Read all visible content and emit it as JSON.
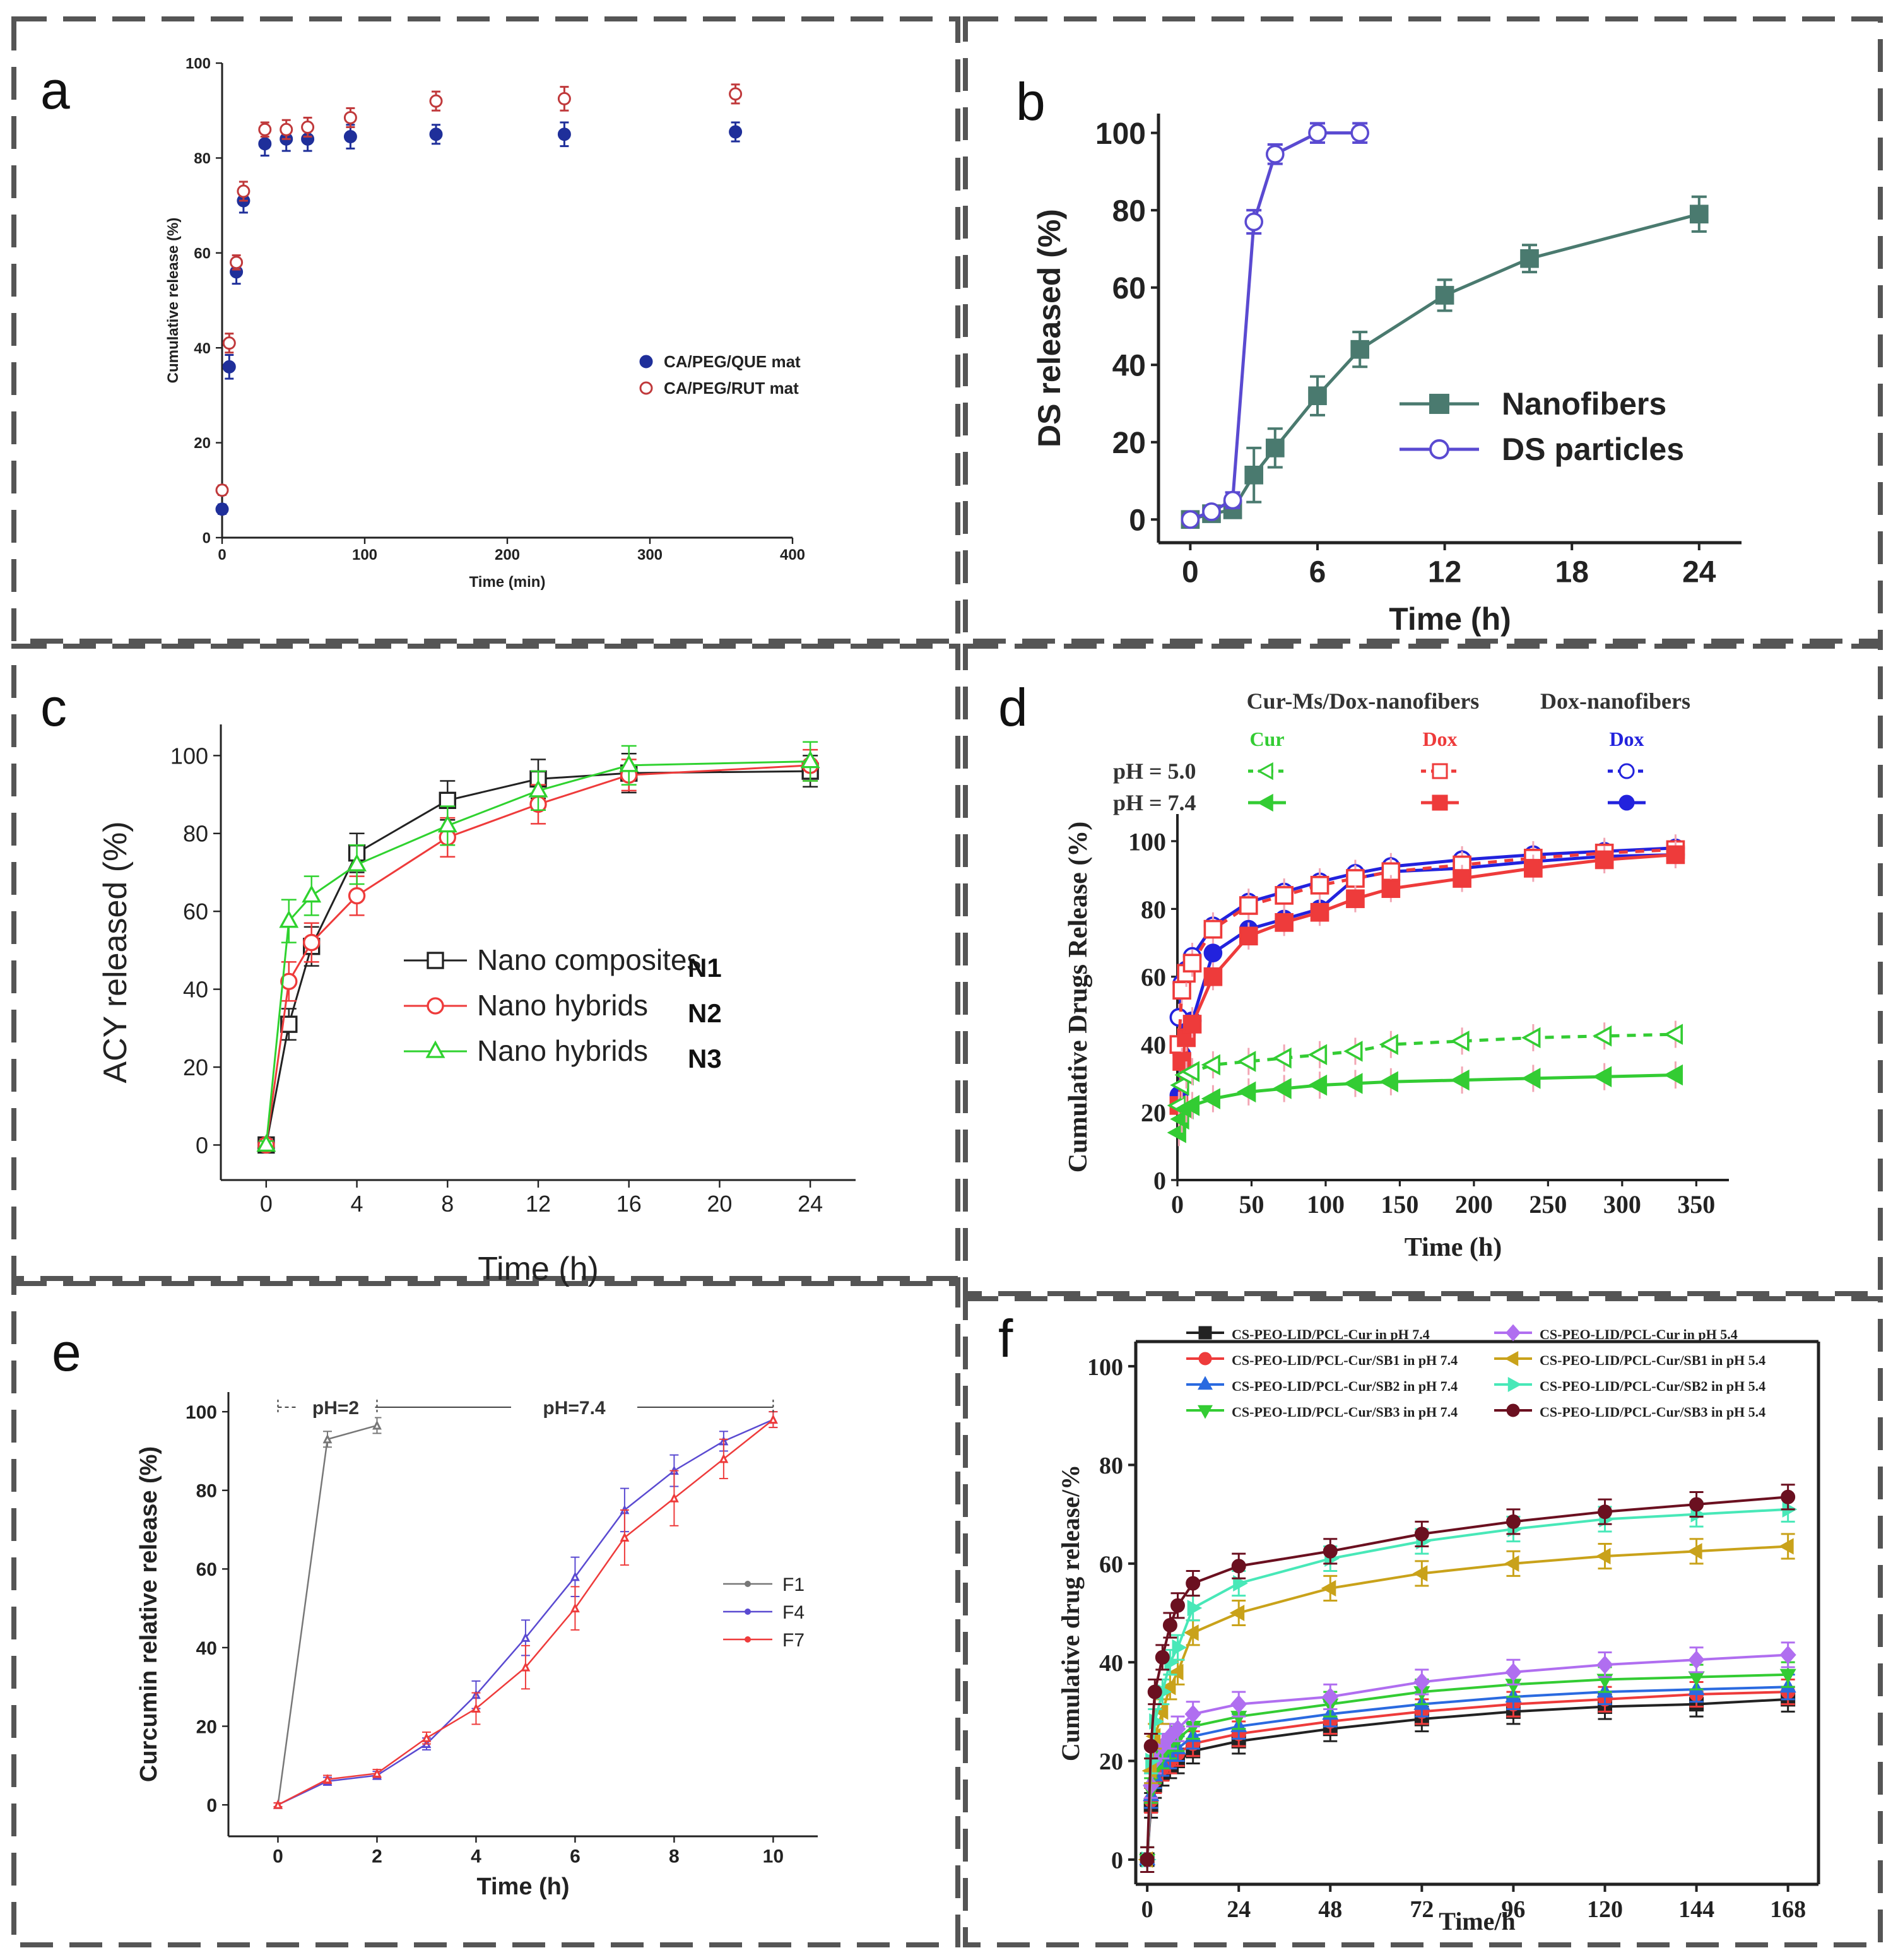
{
  "colors": {
    "panel_border": "#555555",
    "navy": "#1f2f9a",
    "redA": "#c0393b",
    "teal": "#4a7a6f",
    "purple": "#5a4ad1",
    "black": "#222222",
    "red": "#ee3b3b",
    "green": "#2fd22f",
    "brightGreen": "#33cc33",
    "blue": "#2222dd",
    "darkRed": "#6b1020",
    "gold": "#c9a21a",
    "aqua": "#48e8b8",
    "violet": "#b06ef0",
    "grayLine": "#777777"
  },
  "chart_data": [
    {
      "panel": "a",
      "type": "scatter",
      "xlabel": "Time (min)",
      "ylabel": "Cumulative release (%)",
      "xlim": [
        0,
        400
      ],
      "ylim": [
        0,
        100
      ],
      "xticks": [
        0,
        100,
        200,
        300,
        400
      ],
      "yticks": [
        0,
        20,
        40,
        60,
        80,
        100
      ],
      "series": [
        {
          "name": "CA/PEG/QUE mat",
          "marker": "filled-circle",
          "color": "#1f2f9a",
          "x": [
            0,
            5,
            10,
            15,
            30,
            45,
            60,
            90,
            150,
            240,
            360
          ],
          "y": [
            6,
            36,
            56,
            71,
            83,
            84,
            84,
            84.5,
            85,
            85,
            85.5
          ],
          "err": [
            1,
            2.5,
            2.5,
            2.5,
            2.5,
            2.5,
            2.5,
            2.5,
            2,
            2.5,
            2
          ]
        },
        {
          "name": "CA/PEG/RUT mat",
          "marker": "open-circle",
          "color": "#c0393b",
          "x": [
            0,
            5,
            10,
            15,
            30,
            45,
            60,
            90,
            150,
            240,
            360
          ],
          "y": [
            10,
            41,
            58,
            73,
            86,
            86,
            86.5,
            88.5,
            92,
            92.5,
            93.5
          ],
          "err": [
            1,
            2,
            1.5,
            2,
            1.5,
            2,
            2,
            2,
            2,
            2.5,
            2
          ]
        }
      ],
      "legend_position": "center-right"
    },
    {
      "panel": "b",
      "type": "line",
      "xlabel": "Time (h)",
      "ylabel": "DS released (%)",
      "xlim": [
        -1.5,
        26
      ],
      "ylim": [
        -6,
        105
      ],
      "xticks": [
        0,
        6,
        12,
        18,
        24
      ],
      "yticks": [
        0,
        20,
        40,
        60,
        80,
        100
      ],
      "series": [
        {
          "name": "Nanofibers",
          "marker": "filled-square",
          "color": "#4a7a6f",
          "x": [
            0,
            1,
            2,
            3,
            4,
            6,
            8,
            12,
            16,
            24
          ],
          "y": [
            0,
            1.5,
            2.5,
            11.5,
            18.5,
            32,
            44,
            58,
            67.5,
            79
          ],
          "err": [
            1,
            1,
            2,
            7,
            5,
            5,
            4.5,
            4,
            3.5,
            4.5
          ]
        },
        {
          "name": "DS particles",
          "marker": "open-circle",
          "color": "#5a4ad1",
          "x": [
            0,
            1,
            2,
            3,
            4,
            6,
            8
          ],
          "y": [
            0,
            2,
            5,
            77,
            94.5,
            100,
            100
          ],
          "err": [
            1,
            1,
            2,
            3,
            2.5,
            2.5,
            2.5
          ]
        }
      ],
      "legend_position": "center-right"
    },
    {
      "panel": "c",
      "type": "line",
      "xlabel": "Time (h)",
      "ylabel": "ACY released (%)",
      "xlim": [
        -2,
        26
      ],
      "ylim": [
        -9,
        108
      ],
      "xticks": [
        0,
        4,
        8,
        12,
        16,
        20,
        24
      ],
      "yticks": [
        0,
        20,
        40,
        60,
        80,
        100
      ],
      "series": [
        {
          "name": "Nano composites",
          "tag": "N1",
          "marker": "open-square",
          "color": "#222222",
          "x": [
            0,
            1,
            2,
            4,
            8,
            12,
            16,
            24
          ],
          "y": [
            0,
            31,
            51,
            75,
            88.5,
            94,
            95.5,
            96
          ],
          "err": [
            1,
            4,
            5,
            5,
            5,
            5,
            5,
            4
          ]
        },
        {
          "name": "Nano hybrids",
          "tag": "N2",
          "marker": "open-circle",
          "color": "#ee3b3b",
          "x": [
            0,
            1,
            2,
            4,
            8,
            12,
            16,
            24
          ],
          "y": [
            0,
            42,
            52,
            64,
            79,
            87.5,
            95,
            97.5
          ],
          "err": [
            1,
            5,
            5,
            5,
            5,
            5,
            4,
            4
          ]
        },
        {
          "name": "Nano hybrids",
          "tag": "N3",
          "marker": "open-triangle",
          "color": "#2fd22f",
          "x": [
            0,
            1,
            2,
            4,
            8,
            12,
            16,
            24
          ],
          "y": [
            0,
            57.5,
            64,
            72,
            82,
            91,
            97.5,
            98.5
          ],
          "err": [
            1,
            5.5,
            5,
            5,
            5,
            5,
            5,
            5
          ]
        }
      ],
      "legend_position": "center"
    },
    {
      "panel": "d",
      "type": "line",
      "xlabel": "Time (h)",
      "ylabel": "Cumulative Drugs Release (%)",
      "xlim": [
        0,
        372
      ],
      "ylim": [
        0,
        108
      ],
      "xticks": [
        0,
        50,
        100,
        150,
        200,
        250,
        300,
        350
      ],
      "yticks": [
        0,
        20,
        40,
        60,
        80,
        100
      ],
      "legend_headers": {
        "group1": "Cur-Ms/Dox-nanofibers",
        "group2": "Dox-nanofibers",
        "col1": "Cur",
        "col2": "Dox",
        "col3": "Dox",
        "row1": "pH = 5.0",
        "row2": "pH = 7.4"
      },
      "series": [
        {
          "name": "Dox-nanofibers Dox pH 5.0",
          "marker": "open-circle",
          "dashed": false,
          "color": "#2222dd",
          "x": [
            1,
            3,
            6,
            10,
            24,
            48,
            72,
            96,
            120,
            144,
            192,
            240,
            288,
            336
          ],
          "y": [
            48,
            58,
            62,
            66,
            75,
            82,
            85,
            88,
            90.5,
            92.5,
            94.5,
            96,
            97,
            98
          ]
        },
        {
          "name": "Dox-nanofibers Dox pH 7.4",
          "marker": "filled-circle",
          "dashed": false,
          "color": "#2222dd",
          "x": [
            1,
            3,
            6,
            10,
            24,
            48,
            72,
            96,
            120,
            144,
            192,
            240,
            288,
            336
          ],
          "y": [
            25,
            37,
            43,
            47,
            67,
            74,
            77,
            80,
            89,
            91,
            92,
            94,
            95.5,
            96
          ]
        },
        {
          "name": "Cur-Ms/Dox-nanofibers Dox pH 5.0",
          "marker": "open-square",
          "dashed": true,
          "color": "#ee3b3b",
          "x": [
            1,
            3,
            6,
            10,
            24,
            48,
            72,
            96,
            120,
            144,
            192,
            240,
            288,
            336
          ],
          "y": [
            40,
            56,
            61,
            64,
            74,
            81,
            84,
            87,
            89,
            91,
            93,
            95,
            96.5,
            97.5
          ]
        },
        {
          "name": "Cur-Ms/Dox-nanofibers Dox pH 7.4",
          "marker": "filled-square",
          "dashed": false,
          "color": "#ee3b3b",
          "x": [
            1,
            3,
            6,
            10,
            24,
            48,
            72,
            96,
            120,
            144,
            192,
            240,
            288,
            336
          ],
          "y": [
            22,
            35,
            42,
            46,
            60,
            72,
            76,
            79,
            83,
            86,
            89,
            92,
            94.5,
            96
          ]
        },
        {
          "name": "Cur-Ms/Dox-nanofibers Cur pH 5.0",
          "marker": "open-triangle-left",
          "dashed": true,
          "color": "#33cc33",
          "x": [
            1,
            3,
            6,
            10,
            24,
            48,
            72,
            96,
            120,
            144,
            192,
            240,
            288,
            336
          ],
          "y": [
            22,
            28,
            31,
            32,
            34,
            35,
            36,
            37,
            38,
            40,
            41,
            42,
            42.5,
            43
          ]
        },
        {
          "name": "Cur-Ms/Dox-nanofibers Cur pH 7.4",
          "marker": "filled-triangle-left",
          "dashed": false,
          "color": "#33cc33",
          "x": [
            1,
            3,
            6,
            10,
            24,
            48,
            72,
            96,
            120,
            144,
            192,
            240,
            288,
            336
          ],
          "y": [
            14,
            18,
            21,
            22,
            24,
            26,
            27,
            28,
            28.5,
            29,
            29.5,
            30,
            30.5,
            31
          ]
        }
      ],
      "legend_position": "top"
    },
    {
      "panel": "e",
      "type": "line",
      "xlabel": "Time (h)",
      "ylabel": "Curcumin relative release (%)",
      "xlim": [
        -1,
        10.9
      ],
      "ylim": [
        -8,
        105
      ],
      "xticks": [
        0,
        2,
        4,
        6,
        8,
        10
      ],
      "yticks": [
        0,
        20,
        40,
        60,
        80,
        100
      ],
      "annotations": [
        "pH=2",
        "pH=7.4"
      ],
      "series": [
        {
          "name": "F1",
          "marker": "small-dot",
          "color": "#777777",
          "x": [
            0,
            1,
            2
          ],
          "y": [
            0,
            93,
            96.5
          ],
          "err": [
            0.5,
            2,
            2
          ]
        },
        {
          "name": "F4",
          "marker": "small-dot",
          "color": "#5a4ad1",
          "x": [
            0,
            1,
            2,
            3,
            4,
            5,
            6,
            7,
            8,
            9,
            10
          ],
          "y": [
            0,
            6,
            7.5,
            15.5,
            28,
            42.5,
            58,
            75,
            85,
            92.5,
            98
          ],
          "err": [
            0.5,
            1,
            1,
            1.5,
            3.5,
            4.5,
            5,
            5.5,
            4,
            2.5,
            2
          ]
        },
        {
          "name": "F7",
          "marker": "small-dot",
          "color": "#ee3b3b",
          "x": [
            0,
            1,
            2,
            3,
            4,
            5,
            6,
            7,
            8,
            9,
            10
          ],
          "y": [
            0,
            6.5,
            8,
            17,
            24.5,
            35,
            50,
            68,
            78,
            88,
            98
          ],
          "err": [
            0.5,
            1,
            1,
            1.5,
            4,
            5.5,
            5.5,
            7,
            7,
            5,
            2
          ]
        }
      ],
      "legend_position": "center-right"
    },
    {
      "panel": "f",
      "type": "line",
      "xlabel": "Time/h",
      "ylabel": "Cumulative drug release/%",
      "xlim": [
        -3,
        176
      ],
      "ylim": [
        -5,
        105
      ],
      "xticks": [
        0,
        24,
        48,
        72,
        96,
        120,
        144,
        168
      ],
      "yticks": [
        0,
        20,
        40,
        60,
        80,
        100
      ],
      "x": [
        0,
        1,
        2,
        4,
        6,
        8,
        12,
        24,
        48,
        72,
        96,
        120,
        144,
        168
      ],
      "series": [
        {
          "name": "CS-PEO-LID/PCL-Cur in pH 7.4",
          "marker": "filled-square",
          "color": "#222222",
          "y": [
            0,
            11,
            15,
            17.5,
            19,
            20,
            22,
            24,
            26.5,
            28.5,
            30,
            31,
            31.5,
            32.5
          ]
        },
        {
          "name": "CS-PEO-LID/PCL-Cur/SB1 in pH 7.4",
          "marker": "filled-circle",
          "color": "#ee3b3b",
          "y": [
            0,
            12,
            16,
            18.5,
            20,
            21.5,
            23.5,
            25.5,
            28,
            30,
            31.5,
            32.5,
            33.5,
            34
          ]
        },
        {
          "name": "CS-PEO-LID/PCL-Cur/SB2 in pH 7.4",
          "marker": "filled-triangle-up",
          "color": "#2a6ae0",
          "y": [
            0,
            13,
            17,
            19.5,
            21,
            22.5,
            25,
            27,
            29.5,
            31.5,
            33,
            34,
            34.5,
            35
          ]
        },
        {
          "name": "CS-PEO-LID/PCL-Cur/SB3 in pH 7.4",
          "marker": "filled-triangle-down",
          "color": "#33cc33",
          "y": [
            0,
            14,
            18,
            21,
            23,
            24.5,
            27,
            29,
            31.5,
            34,
            35.5,
            36.5,
            37,
            37.5
          ]
        },
        {
          "name": "CS-PEO-LID/PCL-Cur in pH 5.4",
          "marker": "filled-diamond",
          "color": "#b06ef0",
          "y": [
            0,
            15,
            20,
            23,
            25,
            26.5,
            29.5,
            31.5,
            33,
            36,
            38,
            39.5,
            40.5,
            41.5
          ]
        },
        {
          "name": "CS-PEO-LID/PCL-Cur/SB1 in pH 5.4",
          "marker": "filled-triangle-left",
          "color": "#c9a21a",
          "y": [
            0,
            18,
            25,
            30,
            35,
            38,
            46,
            50,
            55,
            58,
            60,
            61.5,
            62.5,
            63.5
          ]
        },
        {
          "name": "CS-PEO-LID/PCL-Cur/SB2 in pH 5.4",
          "marker": "filled-triangle-right",
          "color": "#48e8b8",
          "y": [
            0,
            20,
            28,
            34,
            40,
            43,
            51,
            56,
            61,
            64.5,
            67,
            69,
            70,
            71
          ]
        },
        {
          "name": "CS-PEO-LID/PCL-Cur/SB3 in pH 5.4",
          "marker": "filled-circle",
          "color": "#6b1020",
          "y": [
            0,
            23,
            34,
            41,
            47.5,
            51.5,
            56,
            59.5,
            62.5,
            66,
            68.5,
            70.5,
            72,
            73.5
          ]
        }
      ],
      "legend_position": "top"
    }
  ]
}
